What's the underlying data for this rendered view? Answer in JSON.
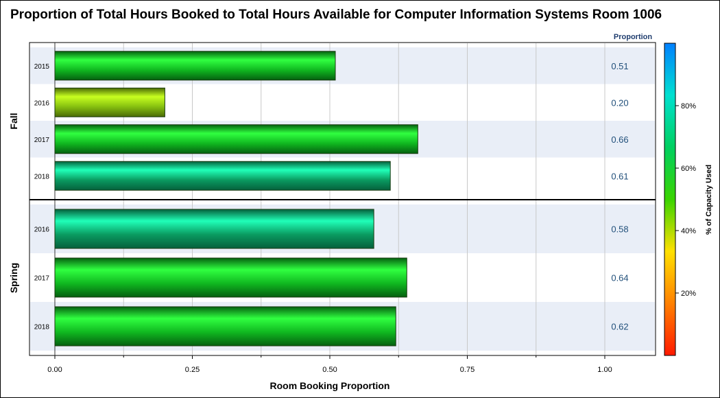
{
  "chart_data": {
    "type": "bar",
    "orientation": "horizontal",
    "title": "Proportion of Total Hours Booked to Total Hours Available for Computer Information Systems Room 1006",
    "xlabel": "Room Booking Proportion",
    "stat_column_header": "Proportion",
    "xlim": [
      0,
      1.1
    ],
    "x_ticks": [
      "0.00",
      "0.25",
      "0.50",
      "0.75",
      "1.00"
    ],
    "x_tick_values": [
      0,
      0.25,
      0.5,
      0.75,
      1.0
    ],
    "grid": true,
    "groups": [
      {
        "name": "Fall",
        "categories": [
          "2015",
          "2016",
          "2017",
          "2018"
        ],
        "values": [
          0.51,
          0.2,
          0.66,
          0.61
        ],
        "labels": [
          "0.51",
          "0.20",
          "0.66",
          "0.61"
        ],
        "capacity_pct": [
          70,
          50,
          66,
          82
        ]
      },
      {
        "name": "Spring",
        "categories": [
          "2016",
          "2017",
          "2018"
        ],
        "values": [
          0.58,
          0.64,
          0.62
        ],
        "labels": [
          "0.58",
          "0.64",
          "0.62"
        ],
        "capacity_pct": [
          80,
          69,
          70
        ]
      }
    ],
    "colorbar": {
      "title": "% of Capacity Used",
      "ticks": [
        "20%",
        "40%",
        "60%",
        "80%"
      ],
      "tick_values": [
        20,
        40,
        60,
        80
      ],
      "range": [
        0,
        100
      ],
      "colors": [
        "#ff1a00",
        "#ff8000",
        "#ffe000",
        "#3ad400",
        "#00d060",
        "#00e0d0",
        "#0080ff"
      ]
    },
    "colors": {
      "band": "#e9eef7",
      "stat_text": "#1f4e79",
      "stat_header": "#1f3d6e",
      "grid": "#c8c8c8"
    }
  }
}
